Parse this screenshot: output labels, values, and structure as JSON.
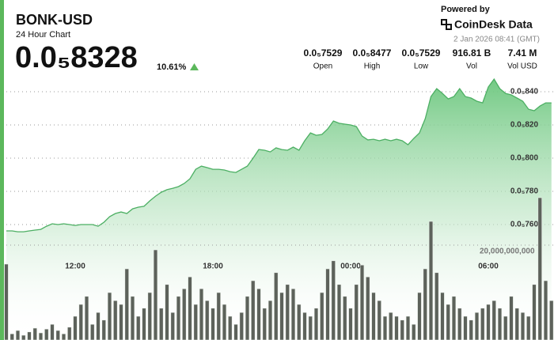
{
  "header": {
    "title": "BONK-USD",
    "subtitle": "24 Hour Chart",
    "price": "0.0₅8328",
    "change": "10.61%",
    "powered_by": "Powered by",
    "brand": "CoinDesk Data",
    "timestamp": "2 Jan 2026 08:41 (GMT)"
  },
  "stats": [
    {
      "value": "0.0₅7529",
      "label": "Open"
    },
    {
      "value": "0.0₅8477",
      "label": "High"
    },
    {
      "value": "0.0₅7529",
      "label": "Low"
    },
    {
      "value": "916.81 B",
      "label": "Vol"
    },
    {
      "value": "7.41 M",
      "label": "Vol USD"
    }
  ],
  "chart_data": [
    {
      "type": "area",
      "color": "#4caf63",
      "categories": [
        null,
        null,
        null,
        null,
        null,
        null,
        null,
        null,
        null,
        null,
        null,
        null,
        "12:00",
        null,
        null,
        null,
        null,
        null,
        null,
        null,
        null,
        null,
        null,
        null,
        null,
        null,
        null,
        null,
        null,
        null,
        null,
        null,
        null,
        null,
        null,
        null,
        "18:00",
        null,
        null,
        null,
        null,
        null,
        null,
        null,
        null,
        null,
        null,
        null,
        null,
        null,
        null,
        null,
        null,
        null,
        null,
        null,
        null,
        null,
        null,
        null,
        "00:00",
        null,
        null,
        null,
        null,
        null,
        null,
        null,
        null,
        null,
        null,
        null,
        null,
        null,
        null,
        null,
        null,
        null,
        null,
        null,
        null,
        null,
        null,
        null,
        "06:00",
        null,
        null,
        null,
        null,
        null,
        null,
        null,
        null,
        null,
        null,
        null
      ],
      "values": [
        7.562e-06,
        7.562e-06,
        7.557e-06,
        7.557e-06,
        7.562e-06,
        7.567e-06,
        7.571e-06,
        7.59e-06,
        7.605e-06,
        7.6e-06,
        7.605e-06,
        7.6e-06,
        7.595e-06,
        7.6e-06,
        7.6e-06,
        7.6e-06,
        7.59e-06,
        7.614e-06,
        7.648e-06,
        7.667e-06,
        7.676e-06,
        7.667e-06,
        7.695e-06,
        7.705e-06,
        7.71e-06,
        7.743e-06,
        7.771e-06,
        7.795e-06,
        7.81e-06,
        7.819e-06,
        7.829e-06,
        7.848e-06,
        7.876e-06,
        7.933e-06,
        7.952e-06,
        7.943e-06,
        7.933e-06,
        7.933e-06,
        7.929e-06,
        7.919e-06,
        7.914e-06,
        7.933e-06,
        7.952e-06,
        8e-06,
        8.052e-06,
        8.048e-06,
        8.038e-06,
        8.062e-06,
        8.052e-06,
        8.048e-06,
        8.067e-06,
        8.048e-06,
        8.105e-06,
        8.152e-06,
        8.138e-06,
        8.143e-06,
        8.176e-06,
        8.224e-06,
        8.21e-06,
        8.205e-06,
        8.2e-06,
        8.19e-06,
        8.133e-06,
        8.11e-06,
        8.114e-06,
        8.105e-06,
        8.114e-06,
        8.105e-06,
        8.114e-06,
        8.105e-06,
        8.081e-06,
        8.119e-06,
        8.152e-06,
        8.238e-06,
        8.371e-06,
        8.419e-06,
        8.39e-06,
        8.357e-06,
        8.371e-06,
        8.419e-06,
        8.371e-06,
        8.362e-06,
        8.343e-06,
        8.333e-06,
        8.429e-06,
        8.476e-06,
        8.419e-06,
        8.39e-06,
        8.381e-06,
        8.362e-06,
        8.343e-06,
        8.295e-06,
        8.286e-06,
        8.314e-06,
        8.333e-06,
        8.333e-06
      ],
      "ylim": [
        6.905e-06,
        8.524e-06
      ],
      "yticks": [
        {
          "value": 8.4e-06,
          "label": "0.0₅840"
        },
        {
          "value": 8.2e-06,
          "label": "0.0₅820"
        },
        {
          "value": 8e-06,
          "label": "0.0₅800"
        },
        {
          "value": 7.8e-06,
          "label": "0.0₅780"
        },
        {
          "value": 7.6e-06,
          "label": "0.0₅760"
        }
      ],
      "grid": true
    },
    {
      "type": "bar",
      "color": "#5d625b",
      "values": [
        16000000000.0,
        1300000000.0,
        2000000000.0,
        1000000000.0,
        1700000000.0,
        2500000000.0,
        1500000000.0,
        2300000000.0,
        3300000000.0,
        2000000000.0,
        1300000000.0,
        2700000000.0,
        5000000000.0,
        7500000000.0,
        9200000000.0,
        3300000000.0,
        5800000000.0,
        4200000000.0,
        10000000000.0,
        8300000000.0,
        7500000000.0,
        15000000000.0,
        9200000000.0,
        5000000000.0,
        6700000000.0,
        10000000000.0,
        19000000000.0,
        6700000000.0,
        11700000000.0,
        5800000000.0,
        9200000000.0,
        10800000000.0,
        13300000000.0,
        7500000000.0,
        10800000000.0,
        8300000000.0,
        6700000000.0,
        10000000000.0,
        7500000000.0,
        5000000000.0,
        3300000000.0,
        5800000000.0,
        9200000000.0,
        12500000000.0,
        10800000000.0,
        6700000000.0,
        8300000000.0,
        14200000000.0,
        10000000000.0,
        11700000000.0,
        10800000000.0,
        7500000000.0,
        5800000000.0,
        5000000000.0,
        6700000000.0,
        10000000000.0,
        15000000000.0,
        16700000000.0,
        11700000000.0,
        9200000000.0,
        6700000000.0,
        11700000000.0,
        15800000000.0,
        13300000000.0,
        10000000000.0,
        8300000000.0,
        5000000000.0,
        5800000000.0,
        5000000000.0,
        4200000000.0,
        5000000000.0,
        3300000000.0,
        10000000000.0,
        15000000000.0,
        25000000000.0,
        14200000000.0,
        10000000000.0,
        7500000000.0,
        9200000000.0,
        6700000000.0,
        5000000000.0,
        4200000000.0,
        5800000000.0,
        6700000000.0,
        7500000000.0,
        8300000000.0,
        6700000000.0,
        5000000000.0,
        9200000000.0,
        6700000000.0,
        5800000000.0,
        5000000000.0,
        11700000000.0,
        30000000000.0,
        12500000000.0,
        8300000000.0
      ],
      "ylim": [
        0,
        40000000000.0
      ],
      "yticks": [
        {
          "value": 20000000000.0,
          "label": "20,000,000,000"
        }
      ],
      "grid": true
    }
  ]
}
